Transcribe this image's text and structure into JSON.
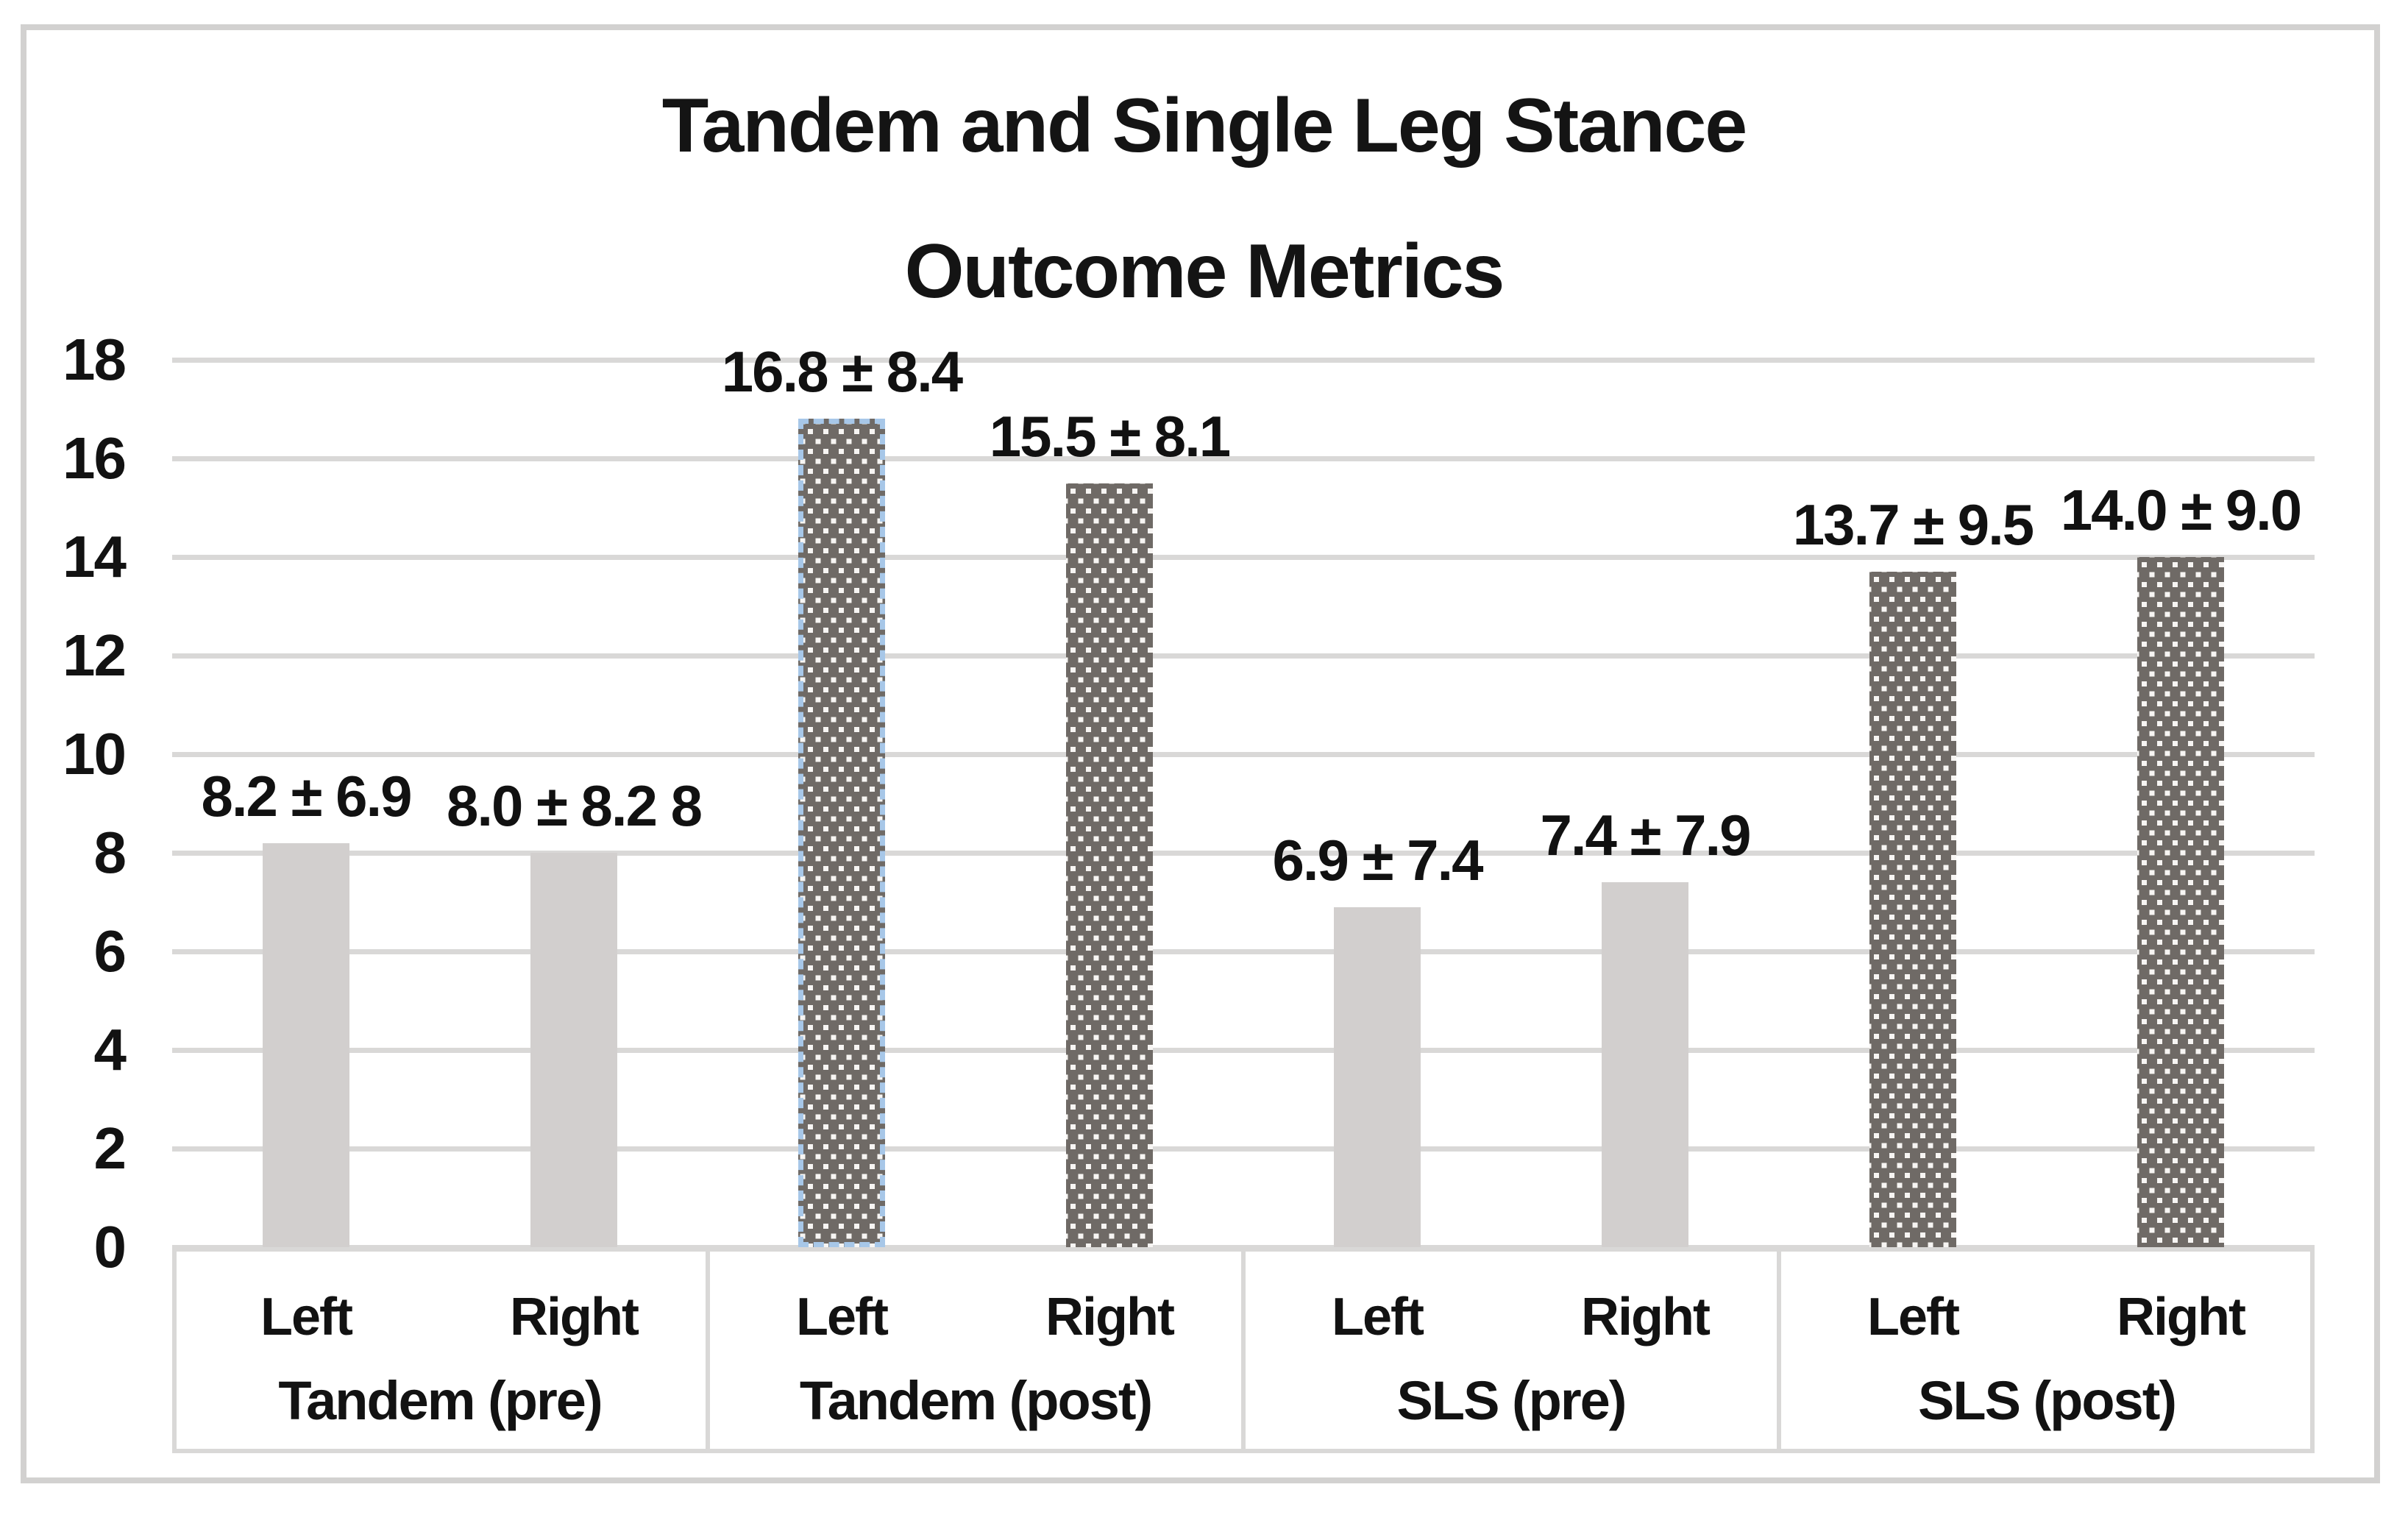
{
  "chart_data": {
    "type": "bar",
    "title_line1": "Tandem and Single Leg Stance",
    "title_line2": "Outcome Metrics",
    "y_axis": {
      "min": 0,
      "max": 18,
      "step": 2,
      "ticks": [
        0,
        2,
        4,
        6,
        8,
        10,
        12,
        14,
        16,
        18
      ],
      "gridlines": true
    },
    "categories": [
      "Tandem (pre)",
      "Tandem (post)",
      "SLS (pre)",
      "SLS (post)"
    ],
    "sub_categories": [
      "Left",
      "Right"
    ],
    "groups": [
      {
        "label": "Tandem (pre)",
        "style": "pre",
        "bars": [
          {
            "side": "Left",
            "value": 8.2,
            "sd": 6.9,
            "label": "8.2 ± 6.9",
            "selected": false
          },
          {
            "side": "Right",
            "value": 8.0,
            "sd": 8.2,
            "label": "8.0 ± 8.2 8",
            "selected": false
          }
        ]
      },
      {
        "label": "Tandem (post)",
        "style": "post",
        "bars": [
          {
            "side": "Left",
            "value": 16.8,
            "sd": 8.4,
            "label": "16.8 ± 8.4",
            "selected": true
          },
          {
            "side": "Right",
            "value": 15.5,
            "sd": 8.1,
            "label": "15.5 ± 8.1",
            "selected": false
          }
        ]
      },
      {
        "label": "SLS (pre)",
        "style": "pre",
        "bars": [
          {
            "side": "Left",
            "value": 6.9,
            "sd": 7.4,
            "label": "6.9 ± 7.4",
            "selected": false
          },
          {
            "side": "Right",
            "value": 7.4,
            "sd": 7.9,
            "label": "7.4 ± 7.9",
            "selected": false
          }
        ]
      },
      {
        "label": "SLS (post)",
        "style": "post",
        "bars": [
          {
            "side": "Left",
            "value": 13.7,
            "sd": 9.5,
            "label": "13.7 ± 9.5",
            "selected": false
          },
          {
            "side": "Right",
            "value": 14.0,
            "sd": 9.0,
            "label": "14.0 ± 9.0",
            "selected": false
          }
        ]
      }
    ],
    "colors": {
      "pre_bar": "#d2cfce",
      "post_bar_base": "#6f6a66",
      "post_bar_dot": "#f7f5f3",
      "selected_outline": "#a7c7e8",
      "gridline": "#d9d8d7",
      "frame_border": "#d2d1d0",
      "text": "#121212"
    }
  }
}
